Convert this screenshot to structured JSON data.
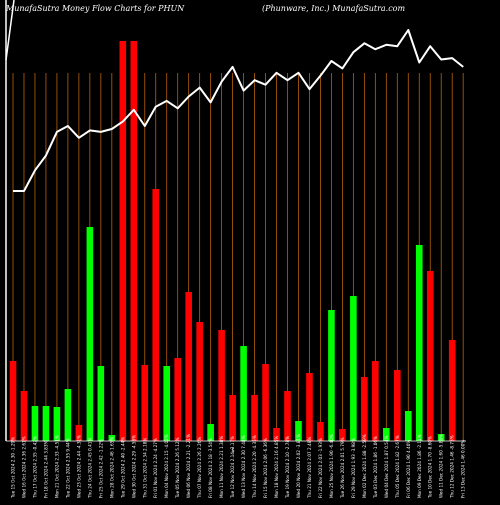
{
  "chart_data": {
    "type": "bar",
    "title_left": "MunafaSutra  Money Flow  Charts for PHUN",
    "title_right": "(Phunware, Inc.) MunafaSutra.com",
    "x_axis_marker": "$",
    "categories": [
      "Fri 13 Dec 2024 1.46 0.00%",
      "Thu 12 Dec 2024 1.46 -8.75%",
      "Wed 11 Dec 2024 1.60 -5.88%",
      "Tue 10 Dec 2024 1.70 -8.60%",
      "Mon 09 Dec 2024 1.86 -2.11%",
      "Fri 06 Dec 2024 1.90 4.40%",
      "Thu 05 Dec 2024 1.82 -2.67%",
      "Wed 04 Dec 2024 1.87 0.54%",
      "Tue 03 Dec 2024 1.86 -1.06%",
      "Mon 02 Dec 2024 1.88 -2.59%",
      "Fri 29 Nov 2024 1.93 -3.98%",
      "Tue 26 Nov 2024 2.01 5.79%",
      "Mon 25 Nov 2024 1.90 -6.40%",
      "Fri 22 Nov 2024 2.03 -1.93%",
      "Thu 21 Nov 2024 2.07 2.48%",
      "Wed 20 Nov 2024 2.02 -3.81%",
      "Tue 19 Nov 2024 2.10 -2.78%",
      "Mon 18 Nov 2024 2.16 4.85%",
      "Fri 15 Nov 2024 2.06 -6.36%",
      "Thu 14 Nov 2024 2.20 -4.35%",
      "Wed 13 Nov 2024 2.30 7.48%",
      "Tue 12 Nov 2024 2.14 -3.17%",
      "Mon 11 Nov 2024 2.21 1.38%",
      "Fri 08 Nov 2024 2.18 -3.54%",
      "Thu 07 Nov 2024 2.26 2.26%",
      "Wed 06 Nov 2024 2.21 -2.21%",
      "Tue 05 Nov 2024 2.26 5.12%",
      "Mon 04 Nov 2024 2.15 -4.02%",
      "Fri 01 Nov 2024 2.24 -4.27%",
      "Thu 31 Oct 2024 2.34 2.18%",
      "Wed 30 Oct 2024 2.29 -4.58%",
      "Tue 29 Oct 2024 2.40 -2.44%",
      "Mon 28 Oct 2024 2.46 1.65%",
      "Fri 25 Oct 2024 2.42 -1.22%",
      "Thu 24 Oct 2024 2.45 0.41%",
      "Wed 23 Oct 2024 2.44 -4.31%",
      "Tue 22 Oct 2024 2.55 9.44%",
      "Mon 21 Oct 2024 2.33 -4.51%",
      "Fri 18 Oct 2024 2.44 3.83%",
      "Thu 17 Oct 2024 2.35 -0.42%",
      "Wed 16 Oct 2024 2.36 2.61%",
      "Tue 15 Oct 2024 2.30 -1.29%"
    ],
    "bar_colors": [
      "red",
      "red",
      "green",
      "green",
      "green",
      "green",
      "red",
      "green",
      "green",
      "green",
      "red",
      "red",
      "red",
      "red",
      "green",
      "red",
      "red",
      "red",
      "green",
      "red",
      "red",
      "green",
      "red",
      "red",
      "red",
      "red",
      "green",
      "red",
      "red",
      "green",
      "red",
      "green",
      "red",
      "red",
      "green",
      "red",
      "green",
      "green",
      "red",
      "green",
      "red",
      "green"
    ],
    "bar_heights": [
      80,
      50,
      35,
      35,
      34,
      52,
      16,
      214,
      75,
      6,
      400,
      400,
      76,
      252,
      75,
      83,
      149,
      119,
      17,
      111,
      46,
      95,
      46,
      77,
      13,
      50,
      20,
      68,
      19,
      131,
      12,
      145,
      64,
      80,
      13,
      71,
      30,
      196,
      170,
      7,
      101,
      0
    ],
    "price_line": [
      1.46,
      1.46,
      1.6,
      1.7,
      1.86,
      1.9,
      1.82,
      1.87,
      1.86,
      1.88,
      1.93,
      2.01,
      1.9,
      2.03,
      2.07,
      2.02,
      2.1,
      2.16,
      2.06,
      2.2,
      2.3,
      2.14,
      2.21,
      2.18,
      2.26,
      2.21,
      2.26,
      2.15,
      2.24,
      2.34,
      2.29,
      2.4,
      2.46,
      2.42,
      2.45,
      2.44,
      2.55,
      2.33,
      2.44,
      2.35,
      2.36,
      2.3
    ],
    "colors": {
      "background": "#000000",
      "gridline": "#b8620b",
      "up": "#00ff00",
      "down": "#ff0000",
      "line": "#ffffff",
      "text": "#ffffff"
    },
    "grid": true
  }
}
